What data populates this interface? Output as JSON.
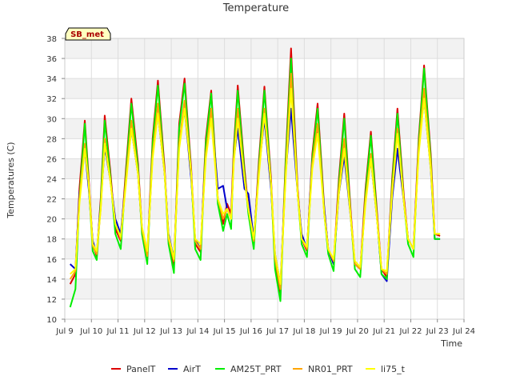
{
  "chart_data": {
    "type": "line",
    "title": "Temperature",
    "xlabel": "Time",
    "ylabel": "Temperatures (C)",
    "site_badge": "SB_met",
    "xlim": [
      9,
      24
    ],
    "ylim": [
      10,
      38
    ],
    "x_tick_values": [
      9,
      10,
      11,
      12,
      13,
      14,
      15,
      16,
      17,
      18,
      19,
      20,
      21,
      22,
      23,
      24
    ],
    "x_tick_labels": [
      "Jul 9",
      "Jul 10",
      "Jul 11",
      "Jul 12",
      "Jul 13",
      "Jul 14",
      "Jul 15",
      "Jul 16",
      "Jul 17",
      "Jul 18",
      "Jul 19",
      "Jul 20",
      "Jul 21",
      "Jul 22",
      "Jul 23",
      "Jul 24"
    ],
    "y_ticks": [
      10,
      12,
      14,
      16,
      18,
      20,
      22,
      24,
      26,
      28,
      30,
      32,
      34,
      36,
      38
    ],
    "grid": true,
    "legend_position": "bottom",
    "colors": {
      "PanelT": "#dd0000",
      "AirT": "#0000cc",
      "AM25T_PRT": "#00ee00",
      "NR01_PRT": "#ffa500",
      "li75_t": "#ffff00"
    },
    "series": [
      {
        "name": "PanelT",
        "x": [
          9.2,
          9.4,
          9.55,
          9.75,
          9.9,
          10.05,
          10.2,
          10.35,
          10.5,
          10.7,
          10.9,
          11.1,
          11.3,
          11.5,
          11.75,
          11.9,
          12.1,
          12.3,
          12.5,
          12.75,
          12.9,
          13.1,
          13.3,
          13.5,
          13.75,
          13.9,
          14.1,
          14.3,
          14.5,
          14.75,
          14.95,
          15.1,
          15.25,
          15.35,
          15.5,
          15.75,
          15.9,
          16.1,
          16.3,
          16.5,
          16.75,
          16.9,
          17.1,
          17.3,
          17.5,
          17.75,
          17.9,
          18.1,
          18.3,
          18.5,
          18.75,
          18.9,
          19.1,
          19.3,
          19.5,
          19.75,
          19.9,
          20.1,
          20.3,
          20.5,
          20.75,
          20.9,
          21.1,
          21.3,
          21.5,
          21.75,
          21.9,
          22.1,
          22.3,
          22.5,
          22.75,
          22.9,
          23.1
        ],
        "values": [
          13.5,
          14.5,
          23.0,
          29.8,
          24.0,
          17.5,
          16.3,
          22.0,
          30.3,
          25.0,
          19.0,
          17.8,
          25.0,
          32.0,
          25.5,
          19.0,
          16.2,
          28.0,
          33.8,
          25.0,
          18.0,
          15.2,
          29.5,
          34.0,
          25.0,
          17.5,
          16.7,
          28.0,
          32.8,
          22.0,
          19.5,
          21.5,
          20.5,
          27.0,
          33.3,
          25.0,
          21.0,
          17.5,
          26.0,
          33.2,
          24.0,
          15.5,
          12.3,
          26.0,
          37.0,
          23.0,
          18.0,
          16.8,
          26.5,
          31.5,
          21.0,
          17.0,
          15.5,
          24.0,
          30.5,
          20.5,
          15.5,
          15.0,
          23.0,
          28.7,
          20.0,
          15.0,
          14.2,
          24.0,
          31.0,
          22.0,
          18.0,
          17.0,
          28.0,
          35.3,
          26.5,
          18.5,
          18.3
        ]
      },
      {
        "name": "AirT",
        "x": [
          9.2,
          9.4,
          9.55,
          9.75,
          9.9,
          10.05,
          10.2,
          10.35,
          10.5,
          10.7,
          10.9,
          11.1,
          11.3,
          11.5,
          11.75,
          11.9,
          12.1,
          12.3,
          12.5,
          12.75,
          12.9,
          13.1,
          13.3,
          13.5,
          13.75,
          13.9,
          14.1,
          14.3,
          14.5,
          14.75,
          14.95,
          15.1,
          15.25,
          15.35,
          15.5,
          15.75,
          15.9,
          16.1,
          16.3,
          16.5,
          16.75,
          16.9,
          17.1,
          17.3,
          17.5,
          17.75,
          17.9,
          18.1,
          18.3,
          18.5,
          18.75,
          18.9,
          19.1,
          19.3,
          19.5,
          19.75,
          19.9,
          20.1,
          20.3,
          20.5,
          20.75,
          20.9,
          21.1,
          21.3,
          21.5,
          21.75,
          21.9,
          22.1,
          22.3,
          22.5,
          22.75,
          22.9,
          23.1
        ],
        "values": [
          15.5,
          15.0,
          22.5,
          27.0,
          23.0,
          17.8,
          16.5,
          21.5,
          27.2,
          24.0,
          20.0,
          18.5,
          24.0,
          29.0,
          24.5,
          19.0,
          16.5,
          26.5,
          30.5,
          24.5,
          18.5,
          16.0,
          27.5,
          31.0,
          24.0,
          18.0,
          17.0,
          27.0,
          31.0,
          23.0,
          23.3,
          21.0,
          20.0,
          26.0,
          29.0,
          23.0,
          22.5,
          18.0,
          25.0,
          30.0,
          23.0,
          16.5,
          13.5,
          24.5,
          31.0,
          22.5,
          18.5,
          17.0,
          26.0,
          29.0,
          21.0,
          17.0,
          15.5,
          22.5,
          26.3,
          20.0,
          15.5,
          15.0,
          22.0,
          26.0,
          19.5,
          14.5,
          13.8,
          22.0,
          27.0,
          21.5,
          18.0,
          17.0,
          27.0,
          32.0,
          25.0,
          18.0,
          18.0
        ]
      },
      {
        "name": "AM25T_PRT",
        "x": [
          9.2,
          9.4,
          9.55,
          9.75,
          9.9,
          10.05,
          10.2,
          10.35,
          10.5,
          10.7,
          10.9,
          11.1,
          11.3,
          11.5,
          11.75,
          11.9,
          12.1,
          12.3,
          12.5,
          12.75,
          12.9,
          13.1,
          13.3,
          13.5,
          13.75,
          13.9,
          14.1,
          14.3,
          14.5,
          14.75,
          14.95,
          15.1,
          15.25,
          15.35,
          15.5,
          15.75,
          15.9,
          16.1,
          16.3,
          16.5,
          16.75,
          16.9,
          17.1,
          17.3,
          17.5,
          17.75,
          17.9,
          18.1,
          18.3,
          18.5,
          18.75,
          18.9,
          19.1,
          19.3,
          19.5,
          19.75,
          19.9,
          20.1,
          20.3,
          20.5,
          20.75,
          20.9,
          21.1,
          21.3,
          21.5,
          21.75,
          21.9,
          22.1,
          22.3,
          22.5,
          22.75,
          22.9,
          23.1
        ],
        "values": [
          11.2,
          13.0,
          22.0,
          29.5,
          23.5,
          16.8,
          15.9,
          21.5,
          29.8,
          24.5,
          18.5,
          17.0,
          24.5,
          31.5,
          25.0,
          18.5,
          15.5,
          27.5,
          33.3,
          24.5,
          17.5,
          14.6,
          29.0,
          33.5,
          24.5,
          17.0,
          15.9,
          27.5,
          32.5,
          21.5,
          18.8,
          20.5,
          19.0,
          26.5,
          32.8,
          24.5,
          20.5,
          17.0,
          25.5,
          32.8,
          23.5,
          15.0,
          11.8,
          25.5,
          36.0,
          22.5,
          17.5,
          16.2,
          26.0,
          31.0,
          20.5,
          16.5,
          14.8,
          23.5,
          30.0,
          20.0,
          15.0,
          14.2,
          22.5,
          28.3,
          19.5,
          14.5,
          14.0,
          23.5,
          30.5,
          21.5,
          17.5,
          16.2,
          27.5,
          35.0,
          26.0,
          18.0,
          18.0
        ]
      },
      {
        "name": "NR01_PRT",
        "x": [
          9.2,
          9.4,
          9.55,
          9.75,
          9.9,
          10.05,
          10.2,
          10.35,
          10.5,
          10.7,
          10.9,
          11.1,
          11.3,
          11.5,
          11.75,
          11.9,
          12.1,
          12.3,
          12.5,
          12.75,
          12.9,
          13.1,
          13.3,
          13.5,
          13.75,
          13.9,
          14.1,
          14.3,
          14.5,
          14.75,
          14.95,
          15.1,
          15.25,
          15.35,
          15.5,
          15.75,
          15.9,
          16.1,
          16.3,
          16.5,
          16.75,
          16.9,
          17.1,
          17.3,
          17.5,
          17.75,
          17.9,
          18.1,
          18.3,
          18.5,
          18.75,
          18.9,
          19.1,
          19.3,
          19.5,
          19.75,
          19.9,
          20.1,
          20.3,
          20.5,
          20.75,
          20.9,
          21.1,
          21.3,
          21.5,
          21.75,
          21.9,
          22.1,
          22.3,
          22.5,
          22.75,
          22.9,
          23.1
        ],
        "values": [
          14.0,
          14.8,
          22.0,
          27.5,
          23.5,
          17.3,
          16.5,
          21.0,
          28.0,
          24.0,
          19.5,
          18.0,
          24.0,
          29.8,
          24.5,
          19.0,
          16.3,
          26.5,
          31.5,
          24.5,
          18.0,
          15.8,
          27.5,
          31.8,
          24.5,
          17.8,
          17.0,
          26.5,
          31.0,
          22.0,
          20.0,
          21.0,
          20.0,
          26.0,
          31.0,
          24.0,
          21.0,
          17.8,
          25.0,
          31.0,
          23.5,
          16.0,
          13.0,
          24.5,
          34.5,
          22.5,
          18.0,
          17.0,
          25.5,
          29.5,
          20.5,
          17.0,
          15.8,
          23.0,
          28.0,
          20.0,
          15.5,
          15.0,
          22.0,
          26.5,
          19.5,
          15.0,
          14.5,
          23.0,
          29.0,
          21.5,
          18.0,
          17.0,
          27.0,
          33.0,
          25.5,
          18.5,
          18.5
        ]
      },
      {
        "name": "li75_t",
        "x": [
          9.2,
          9.4,
          9.55,
          9.75,
          9.9,
          10.05,
          10.2,
          10.35,
          10.5,
          10.7,
          10.9,
          11.1,
          11.3,
          11.5,
          11.75,
          11.9,
          12.1,
          12.3,
          12.5,
          12.75,
          12.9,
          13.1,
          13.3,
          13.5,
          13.75,
          13.9,
          14.1,
          14.3,
          14.5,
          14.75,
          14.95,
          15.1,
          15.25,
          15.35,
          15.5,
          15.75,
          15.9,
          16.1,
          16.3,
          16.5,
          16.75,
          16.9,
          17.1,
          17.3,
          17.5,
          17.75,
          17.9,
          18.1,
          18.3,
          18.5,
          18.75,
          18.9,
          19.1,
          19.3,
          19.5,
          19.75,
          19.9,
          20.1,
          20.3,
          20.5,
          20.75,
          20.9,
          21.1,
          21.3,
          21.5,
          21.75,
          21.9,
          22.1,
          22.3,
          22.5,
          22.75,
          22.9,
          23.1
        ],
        "values": [
          14.5,
          15.0,
          21.5,
          27.0,
          23.5,
          17.5,
          16.8,
          21.0,
          27.5,
          24.0,
          19.5,
          18.2,
          23.5,
          29.0,
          24.5,
          19.2,
          16.8,
          26.0,
          30.5,
          24.5,
          18.3,
          16.0,
          27.0,
          31.0,
          24.5,
          18.0,
          17.5,
          26.0,
          30.0,
          22.0,
          20.5,
          21.0,
          20.0,
          25.5,
          30.0,
          24.0,
          21.0,
          18.0,
          24.5,
          30.5,
          23.5,
          16.5,
          13.5,
          24.0,
          33.0,
          22.5,
          18.0,
          17.2,
          25.0,
          28.5,
          20.5,
          17.0,
          16.0,
          22.5,
          27.0,
          20.0,
          15.8,
          15.2,
          21.5,
          26.0,
          19.5,
          15.0,
          14.8,
          22.5,
          28.5,
          21.5,
          18.0,
          17.0,
          26.5,
          32.0,
          25.0,
          18.5,
          18.5
        ]
      }
    ]
  }
}
